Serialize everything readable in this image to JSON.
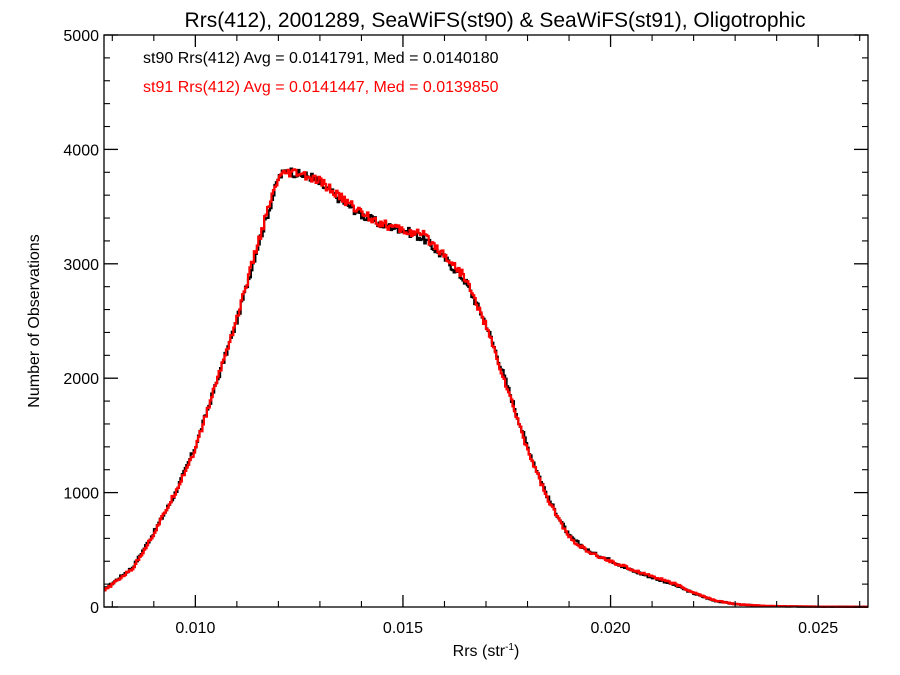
{
  "chart_data": {
    "type": "line",
    "style": "step-histogram",
    "title": "Rrs(412), 2001289, SeaWiFS(st90) & SeaWiFS(st91), Oligotrophic",
    "xlabel": "Rrs (str",
    "xlabel_superscript": "-1",
    "xlabel_suffix": ")",
    "ylabel": "Number of Observations",
    "xlim": [
      0.0078,
      0.0262
    ],
    "ylim": [
      0,
      5000
    ],
    "grid": false,
    "x_ticks": [
      0.01,
      0.015,
      0.02,
      0.025
    ],
    "x_tick_labels": [
      "0.010",
      "0.015",
      "0.020",
      "0.025"
    ],
    "y_ticks": [
      0,
      1000,
      2000,
      3000,
      4000,
      5000
    ],
    "y_tick_labels": [
      "0",
      "1000",
      "2000",
      "3000",
      "4000",
      "5000"
    ],
    "annotations": [
      {
        "text": "st90 Rrs(412) Avg = 0.0141791, Med = 0.0140180",
        "color": "#000000"
      },
      {
        "text": "st91 Rrs(412) Avg = 0.0141447, Med = 0.0139850",
        "color": "#ff0000"
      }
    ],
    "series": [
      {
        "color": "#000000",
        "x": [
          0.0078,
          0.0085,
          0.009,
          0.0095,
          0.01,
          0.0105,
          0.011,
          0.0115,
          0.0118,
          0.012,
          0.0122,
          0.0125,
          0.0128,
          0.013,
          0.0135,
          0.014,
          0.0145,
          0.015,
          0.0155,
          0.016,
          0.0165,
          0.017,
          0.0175,
          0.018,
          0.0185,
          0.019,
          0.0195,
          0.02,
          0.0205,
          0.021,
          0.0215,
          0.022,
          0.0225,
          0.023,
          0.0235,
          0.024,
          0.025,
          0.0262
        ],
        "values": [
          150,
          350,
          650,
          980,
          1400,
          1950,
          2500,
          3150,
          3500,
          3750,
          3820,
          3780,
          3760,
          3700,
          3560,
          3430,
          3340,
          3300,
          3220,
          3050,
          2850,
          2480,
          1950,
          1400,
          950,
          620,
          480,
          410,
          320,
          260,
          200,
          120,
          55,
          25,
          12,
          6,
          3,
          2
        ]
      },
      {
        "color": "#ff0000",
        "x": [
          0.0078,
          0.0085,
          0.009,
          0.0095,
          0.01,
          0.0105,
          0.011,
          0.0115,
          0.0118,
          0.012,
          0.0122,
          0.0125,
          0.0128,
          0.013,
          0.0135,
          0.014,
          0.0145,
          0.015,
          0.0155,
          0.016,
          0.0165,
          0.017,
          0.0175,
          0.018,
          0.0185,
          0.019,
          0.0195,
          0.02,
          0.0205,
          0.021,
          0.0215,
          0.022,
          0.0225,
          0.023,
          0.0235,
          0.024,
          0.025,
          0.0262
        ],
        "values": [
          140,
          340,
          640,
          990,
          1380,
          1960,
          2520,
          3170,
          3530,
          3740,
          3790,
          3790,
          3740,
          3720,
          3580,
          3450,
          3350,
          3290,
          3250,
          3080,
          2880,
          2460,
          1920,
          1380,
          930,
          610,
          470,
          400,
          330,
          270,
          210,
          125,
          58,
          26,
          13,
          7,
          3,
          2
        ]
      }
    ]
  }
}
